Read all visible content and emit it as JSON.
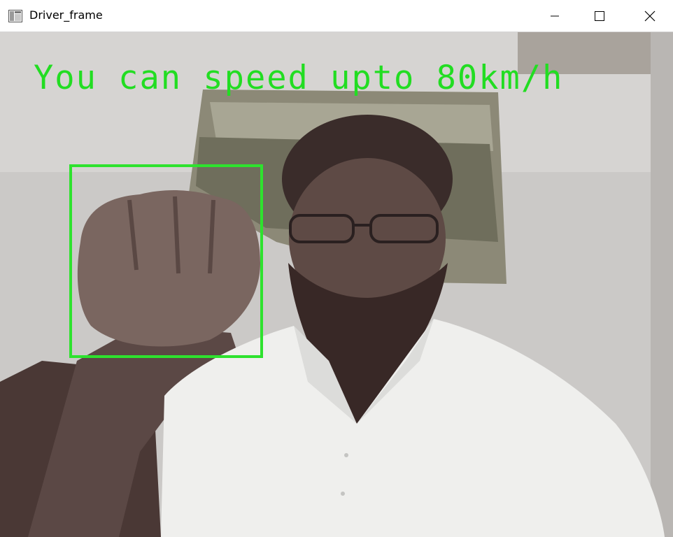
{
  "window": {
    "title": "Driver_frame",
    "icons": {
      "app": "app-window-icon",
      "minimize": "minimize-icon",
      "maximize": "maximize-icon",
      "close": "close-icon"
    }
  },
  "frame": {
    "overlay_text": "You can speed upto 80km/h",
    "overlay_color": "#22dd22",
    "detection_box_color": "#2ee22e",
    "scene_description_colors": {
      "wall": "#cbc9c7",
      "painting": "#8d8a78",
      "skin": "#6e5a52",
      "hair": "#3a2c2a",
      "shirt": "#f2f2f0"
    }
  }
}
